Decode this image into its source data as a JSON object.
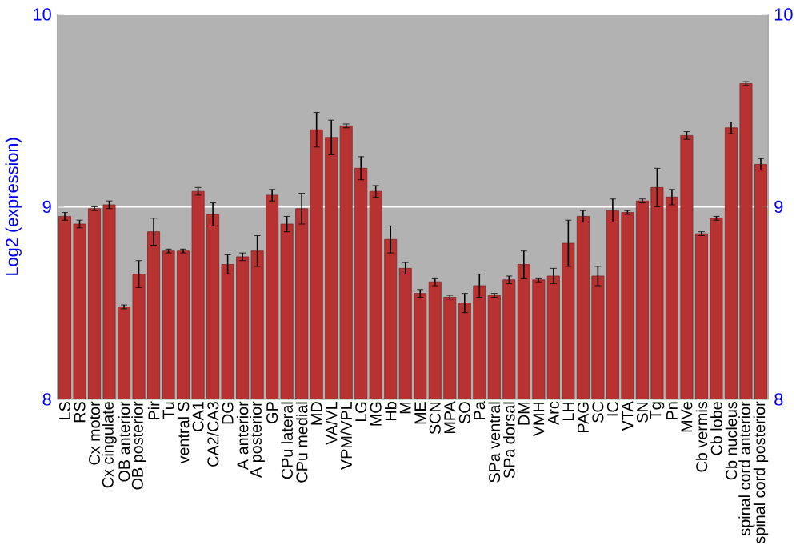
{
  "chart_data": {
    "type": "bar",
    "ylabel": "Log2 (expression)",
    "categories": [
      "LS",
      "RS",
      "Cx motor",
      "Cx cingulate",
      "OB anterior",
      "OB posterior",
      "Pir",
      "Tu",
      "ventral S",
      "CA1",
      "CA2/CA3",
      "DG",
      "A anterior",
      "A posterior",
      "GP",
      "CPu lateral",
      "CPu medial",
      "MD",
      "VA/VL",
      "VPM/VPL",
      "LG",
      "MG",
      "Hb",
      "M",
      "ME",
      "SCN",
      "MPA",
      "SO",
      "Pa",
      "SPa ventral",
      "SPa dorsal",
      "DM",
      "VMH",
      "Arc",
      "LH",
      "PAG",
      "SC",
      "IC",
      "VTA",
      "SN",
      "Tg",
      "Pn",
      "MVe",
      "Cb vermis",
      "Cb lobe",
      "Cb nucleus",
      "spinal cord anterior",
      "spinal cord posterior"
    ],
    "values": [
      8.95,
      8.91,
      8.99,
      9.01,
      8.48,
      8.65,
      8.87,
      8.77,
      8.77,
      9.08,
      8.96,
      8.7,
      8.74,
      8.77,
      9.06,
      8.91,
      8.99,
      9.4,
      9.36,
      9.42,
      9.2,
      9.08,
      8.83,
      8.68,
      8.55,
      8.61,
      8.53,
      8.5,
      8.59,
      8.54,
      8.62,
      8.7,
      8.62,
      8.64,
      8.81,
      8.95,
      8.64,
      8.98,
      8.97,
      9.03,
      9.1,
      9.05,
      9.37,
      8.86,
      8.94,
      9.41,
      9.64,
      9.22
    ],
    "errors": [
      0.02,
      0.02,
      0.01,
      0.02,
      0.01,
      0.07,
      0.07,
      0.01,
      0.01,
      0.02,
      0.06,
      0.05,
      0.02,
      0.08,
      0.03,
      0.04,
      0.08,
      0.09,
      0.09,
      0.01,
      0.06,
      0.03,
      0.07,
      0.03,
      0.02,
      0.02,
      0.01,
      0.05,
      0.06,
      0.01,
      0.02,
      0.07,
      0.01,
      0.04,
      0.12,
      0.03,
      0.05,
      0.06,
      0.01,
      0.01,
      0.1,
      0.04,
      0.02,
      0.01,
      0.01,
      0.03,
      0.01,
      0.03
    ],
    "color": "#b83232",
    "ylim": [
      8,
      10
    ],
    "yticks": [
      8,
      9,
      10
    ],
    "y2lim": [
      8,
      10
    ],
    "y2ticks": [
      8,
      9,
      10
    ],
    "grid": "y"
  }
}
